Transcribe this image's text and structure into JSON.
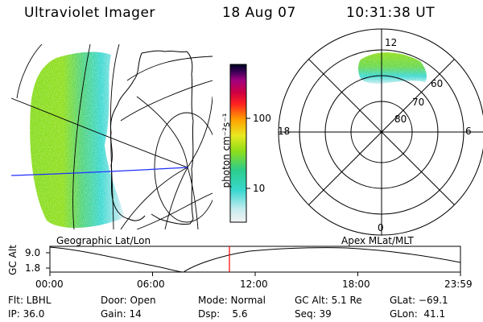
{
  "header": {
    "instrument": "Ultraviolet Imager",
    "date": "18 Aug 07",
    "time": "10:31:38 UT"
  },
  "colorbar": {
    "unit_label": "photon cm⁻²s⁻¹",
    "tick_100": "100",
    "tick_10": "10"
  },
  "geo_map": {
    "label": "Geographic Lat/Lon"
  },
  "polar_plot": {
    "label": "Apex MLat/MLT",
    "mlt_12": "12",
    "mlt_18": "18",
    "mlt_6": "6",
    "mlt_0": "0",
    "lat_60": "60",
    "lat_70": "70",
    "lat_80": "80"
  },
  "alt_plot": {
    "ylabel": "GC Alt",
    "ytick_high": "9.0",
    "ytick_low": "1.8",
    "xticks": [
      "00:00",
      "06:00",
      "12:00",
      "18:00",
      "23:59"
    ]
  },
  "info": {
    "flt": "Flt: LBHL",
    "ip": "IP: 36.0",
    "door": "Door: Open",
    "gain": "Gain: 14",
    "mode": "Mode: Normal",
    "dsp": "Dsp:    5.6",
    "gc_alt": "GC Alt: 5.1 Re",
    "seq": "Seq: 39",
    "glat": "GLat: −69.1",
    "glon": "GLon:  41.1"
  },
  "colors": {
    "aurora_green": "#8ede1a",
    "aurora_teal": "#3ad8d0",
    "blue_line": "#2030ff",
    "time_marker": "#ff0000"
  }
}
